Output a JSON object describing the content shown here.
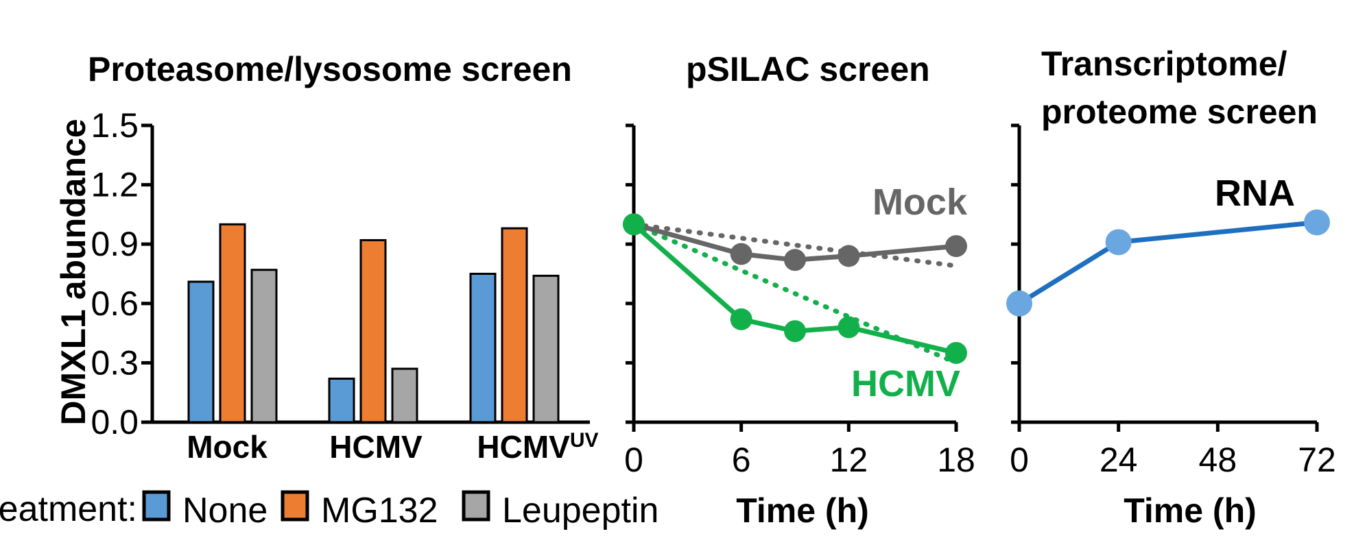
{
  "colors": {
    "none": "#5b9bd5",
    "mg132": "#ed7d31",
    "leupeptin": "#a6a6a6",
    "mock": "#666666",
    "hcmv": "#12b04b",
    "rna": "#1f6fc1",
    "rna_marker": "#6aa7e0"
  },
  "legend": {
    "label": "Treatment:",
    "items": [
      "None",
      "MG132",
      "Leupeptin"
    ]
  },
  "chart_data": [
    {
      "type": "bar",
      "title": "Proteasome/lysosome screen",
      "ylabel": "DMXL1 abundance",
      "xlabel": "",
      "ylim": [
        0,
        1.5
      ],
      "yticks": [
        "0.0",
        "0.3",
        "0.6",
        "0.9",
        "1.2",
        "1.5"
      ],
      "categories": [
        "Mock",
        "HCMV",
        "HCMV"
      ],
      "category_superscripts": [
        "",
        "",
        "UV"
      ],
      "series": [
        {
          "name": "None",
          "values": [
            0.71,
            0.22,
            0.75
          ]
        },
        {
          "name": "MG132",
          "values": [
            1.0,
            0.92,
            0.98
          ]
        },
        {
          "name": "Leupeptin",
          "values": [
            0.77,
            0.27,
            0.74
          ]
        }
      ]
    },
    {
      "type": "line",
      "title": "pSILAC screen",
      "xlabel": "Time (h)",
      "xlim": [
        0,
        18
      ],
      "xticks": [
        "0",
        "6",
        "12",
        "18"
      ],
      "ylim": [
        0,
        1.5
      ],
      "series": [
        {
          "name": "Mock",
          "x": [
            0,
            6,
            9,
            12,
            18
          ],
          "y": [
            1.0,
            0.85,
            0.82,
            0.84,
            0.89
          ]
        },
        {
          "name": "HCMV",
          "x": [
            0,
            6,
            9,
            12,
            18
          ],
          "y": [
            1.0,
            0.52,
            0.46,
            0.48,
            0.35
          ]
        }
      ],
      "fits": [
        {
          "series": "Mock",
          "x": [
            0,
            18
          ],
          "y": [
            1.0,
            0.79
          ],
          "style": "dotted"
        },
        {
          "series": "HCMV",
          "x": [
            0,
            18
          ],
          "y": [
            1.0,
            0.3
          ],
          "style": "dotted"
        }
      ]
    },
    {
      "type": "line",
      "title": "Transcriptome/ proteome screen",
      "title_lines": [
        "Transcriptome/",
        "proteome screen"
      ],
      "xlabel": "Time (h)",
      "xlim": [
        0,
        72
      ],
      "xticks": [
        "0",
        "24",
        "48",
        "72"
      ],
      "ylim": [
        0,
        1.5
      ],
      "series": [
        {
          "name": "RNA",
          "x": [
            0,
            24,
            72
          ],
          "y": [
            0.6,
            0.91,
            1.01
          ]
        }
      ]
    }
  ]
}
